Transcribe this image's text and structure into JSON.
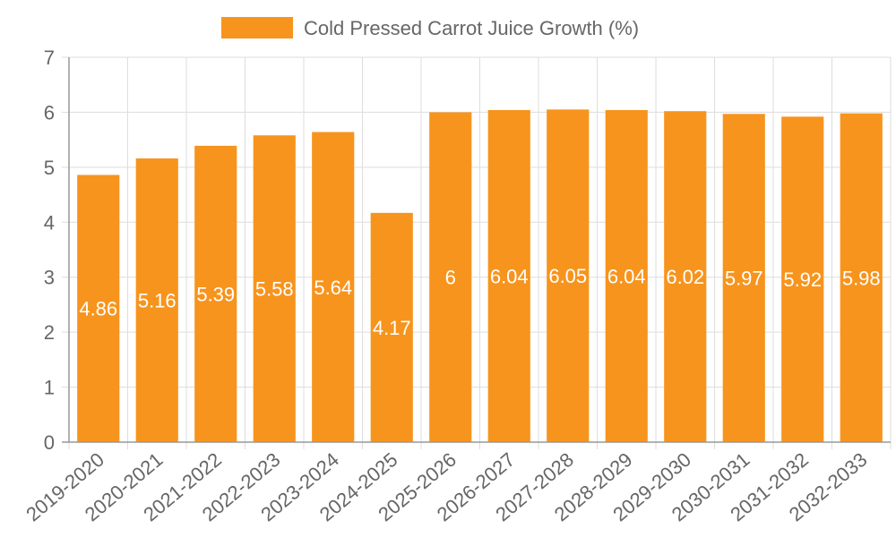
{
  "chart_data": {
    "type": "bar",
    "title": "",
    "xlabel": "",
    "ylabel": "",
    "categories": [
      "2019-2020",
      "2020-2021",
      "2021-2022",
      "2022-2023",
      "2023-2024",
      "2024-2025",
      "2025-2026",
      "2026-2027",
      "2027-2028",
      "2028-2029",
      "2029-2030",
      "2030-2031",
      "2031-2032",
      "2032-2033"
    ],
    "series": [
      {
        "name": "Cold Pressed Carrot Juice Growth (%)",
        "values": [
          4.86,
          5.16,
          5.39,
          5.58,
          5.64,
          4.17,
          6,
          6.04,
          6.05,
          6.04,
          6.02,
          5.97,
          5.92,
          5.98
        ],
        "color": "#F7941D"
      }
    ],
    "data_labels": [
      "4.86",
      "5.16",
      "5.39",
      "5.58",
      "5.64",
      "4.17",
      "6",
      "6.04",
      "6.05",
      "6.04",
      "6.02",
      "5.97",
      "5.92",
      "5.98"
    ],
    "ylim": [
      0,
      7
    ],
    "yticks": [
      "0",
      "1",
      "2",
      "3",
      "4",
      "5",
      "6",
      "7"
    ],
    "grid": true,
    "legend_position": "top-center",
    "colors": {
      "bar": "#F7941D",
      "grid": "#dddddd",
      "axis": "#999999",
      "text": "#666666",
      "data_label": "#ffffff"
    }
  }
}
